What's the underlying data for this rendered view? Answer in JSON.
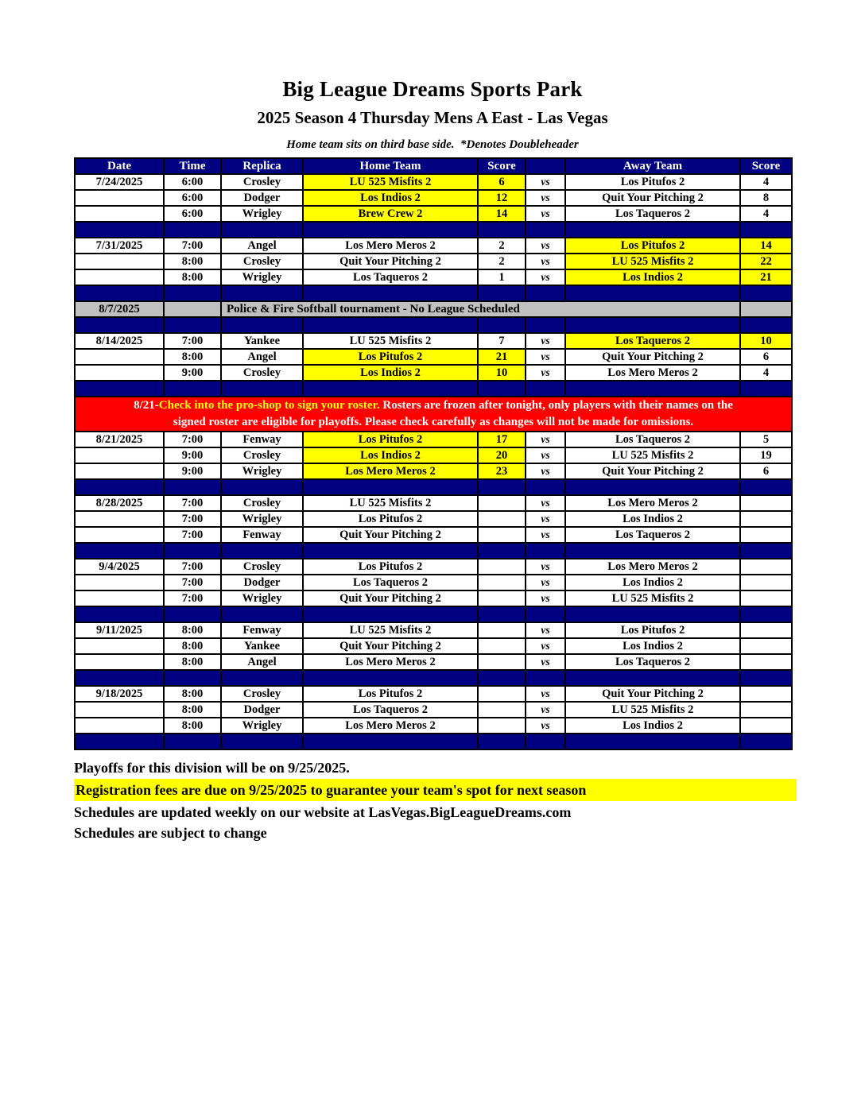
{
  "page": {
    "title": "Big League Dreams Sports Park",
    "subtitle": "2025 Season 4 Thursday Mens A East - Las Vegas",
    "note": "Home team sits on third base side.  *Denotes Doubleheader"
  },
  "colors": {
    "header_navy": "#000080",
    "highlight_yellow": "#FFFF00",
    "notice_gray": "#C0C0C0",
    "notice_red": "#FF0000"
  },
  "table": {
    "headers": [
      "Date",
      "Time",
      "Replica",
      "Home Team",
      "Score",
      "",
      "Away Team",
      "Score"
    ],
    "vs_label": "vs",
    "rows": [
      {
        "type": "game",
        "date": "7/24/2025",
        "time": "6:00",
        "replica": "Crosley",
        "home": "LU 525 Misfits 2",
        "home_score": "6",
        "away": "Los Pitufos 2",
        "away_score": "4",
        "highlight": "home"
      },
      {
        "type": "game",
        "date": "",
        "time": "6:00",
        "replica": "Dodger",
        "home": "Los Indios 2",
        "home_score": "12",
        "away": "Quit Your Pitching 2",
        "away_score": "8",
        "highlight": "home"
      },
      {
        "type": "game",
        "date": "",
        "time": "6:00",
        "replica": "Wrigley",
        "home": "Brew Crew 2",
        "home_score": "14",
        "away": "Los Taqueros 2",
        "away_score": "4",
        "highlight": "home"
      },
      {
        "type": "separator"
      },
      {
        "type": "game",
        "date": "7/31/2025",
        "time": "7:00",
        "replica": "Angel",
        "home": "Los Mero Meros 2",
        "home_score": "2",
        "away": "Los Pitufos 2",
        "away_score": "14",
        "highlight": "away"
      },
      {
        "type": "game",
        "date": "",
        "time": "8:00",
        "replica": "Crosley",
        "home": "Quit Your Pitching 2",
        "home_score": "2",
        "away": "LU 525 Misfits 2",
        "away_score": "22",
        "highlight": "away"
      },
      {
        "type": "game",
        "date": "",
        "time": "8:00",
        "replica": "Wrigley",
        "home": "Los Taqueros 2",
        "home_score": "1",
        "away": "Los Indios 2",
        "away_score": "21",
        "highlight": "away"
      },
      {
        "type": "separator"
      },
      {
        "type": "notice_gray",
        "date": "8/7/2025",
        "text": "Police & Fire Softball tournament - No League Scheduled"
      },
      {
        "type": "separator"
      },
      {
        "type": "game",
        "date": "8/14/2025",
        "time": "7:00",
        "replica": "Yankee",
        "home": "LU 525 Misfits 2",
        "home_score": "7",
        "away": "Los Taqueros 2",
        "away_score": "10",
        "highlight": "away"
      },
      {
        "type": "game",
        "date": "",
        "time": "8:00",
        "replica": "Angel",
        "home": "Los Pitufos 2",
        "home_score": "21",
        "away": "Quit Your Pitching 2",
        "away_score": "6",
        "highlight": "home"
      },
      {
        "type": "game",
        "date": "",
        "time": "9:00",
        "replica": "Crosley",
        "home": "Los Indios 2",
        "home_score": "10",
        "away": "Los Mero Meros 2",
        "away_score": "4",
        "highlight": "home"
      },
      {
        "type": "separator"
      },
      {
        "type": "notice_red",
        "line1_white": "8/21-",
        "line1_yellow": "Check into the pro-shop to sign your roster.",
        "line1_rest": " Rosters are frozen after tonight, only players with their names on the",
        "line2": "signed roster are eligible for playoffs. Please check carefully as changes will not be made for omissions."
      },
      {
        "type": "game",
        "date": "8/21/2025",
        "time": "7:00",
        "replica": "Fenway",
        "home": "Los Pitufos 2",
        "home_score": "17",
        "away": "Los Taqueros 2",
        "away_score": "5",
        "highlight": "home"
      },
      {
        "type": "game",
        "date": "",
        "time": "9:00",
        "replica": "Crosley",
        "home": "Los Indios 2",
        "home_score": "20",
        "away": "LU 525 Misfits 2",
        "away_score": "19",
        "highlight": "home"
      },
      {
        "type": "game",
        "date": "",
        "time": "9:00",
        "replica": "Wrigley",
        "home": "Los Mero Meros 2",
        "home_score": "23",
        "away": "Quit Your Pitching 2",
        "away_score": "6",
        "highlight": "home"
      },
      {
        "type": "separator"
      },
      {
        "type": "game",
        "date": "8/28/2025",
        "time": "7:00",
        "replica": "Crosley",
        "home": "LU 525 Misfits 2",
        "home_score": "",
        "away": "Los Mero Meros 2",
        "away_score": "",
        "highlight": "none"
      },
      {
        "type": "game",
        "date": "",
        "time": "7:00",
        "replica": "Wrigley",
        "home": "Los Pitufos 2",
        "home_score": "",
        "away": "Los Indios 2",
        "away_score": "",
        "highlight": "none"
      },
      {
        "type": "game",
        "date": "",
        "time": "7:00",
        "replica": "Fenway",
        "home": "Quit Your Pitching 2",
        "home_score": "",
        "away": "Los Taqueros 2",
        "away_score": "",
        "highlight": "none"
      },
      {
        "type": "separator"
      },
      {
        "type": "game",
        "date": "9/4/2025",
        "time": "7:00",
        "replica": "Crosley",
        "home": "Los Pitufos 2",
        "home_score": "",
        "away": "Los Mero Meros 2",
        "away_score": "",
        "highlight": "none"
      },
      {
        "type": "game",
        "date": "",
        "time": "7:00",
        "replica": "Dodger",
        "home": "Los Taqueros 2",
        "home_score": "",
        "away": "Los Indios 2",
        "away_score": "",
        "highlight": "none"
      },
      {
        "type": "game",
        "date": "",
        "time": "7:00",
        "replica": "Wrigley",
        "home": "Quit Your Pitching 2",
        "home_score": "",
        "away": "LU 525 Misfits 2",
        "away_score": "",
        "highlight": "none"
      },
      {
        "type": "separator"
      },
      {
        "type": "game",
        "date": "9/11/2025",
        "time": "8:00",
        "replica": "Fenway",
        "home": "LU 525 Misfits 2",
        "home_score": "",
        "away": "Los Pitufos 2",
        "away_score": "",
        "highlight": "none"
      },
      {
        "type": "game",
        "date": "",
        "time": "8:00",
        "replica": "Yankee",
        "home": "Quit Your Pitching 2",
        "home_score": "",
        "away": "Los Indios 2",
        "away_score": "",
        "highlight": "none"
      },
      {
        "type": "game",
        "date": "",
        "time": "8:00",
        "replica": "Angel",
        "home": "Los Mero Meros 2",
        "home_score": "",
        "away": "Los Taqueros 2",
        "away_score": "",
        "highlight": "none"
      },
      {
        "type": "separator"
      },
      {
        "type": "game",
        "date": "9/18/2025",
        "time": "8:00",
        "replica": "Crosley",
        "home": "Los Pitufos 2",
        "home_score": "",
        "away": "Quit Your Pitching 2",
        "away_score": "",
        "highlight": "none"
      },
      {
        "type": "game",
        "date": "",
        "time": "8:00",
        "replica": "Dodger",
        "home": "Los Taqueros 2",
        "home_score": "",
        "away": "LU 525 Misfits 2",
        "away_score": "",
        "highlight": "none"
      },
      {
        "type": "game",
        "date": "",
        "time": "8:00",
        "replica": "Wrigley",
        "home": "Los Mero Meros 2",
        "home_score": "",
        "away": "Los Indios 2",
        "away_score": "",
        "highlight": "none"
      },
      {
        "type": "separator"
      }
    ]
  },
  "footer": {
    "playoffs": "Playoffs for this division will be on 9/25/2025.",
    "registration": "Registration fees are due on 9/25/2025 to guarantee your team's spot for next season",
    "website": "Schedules are updated weekly on our website at LasVegas.BigLeagueDreams.com",
    "subject_to_change": "Schedules are subject to change"
  }
}
